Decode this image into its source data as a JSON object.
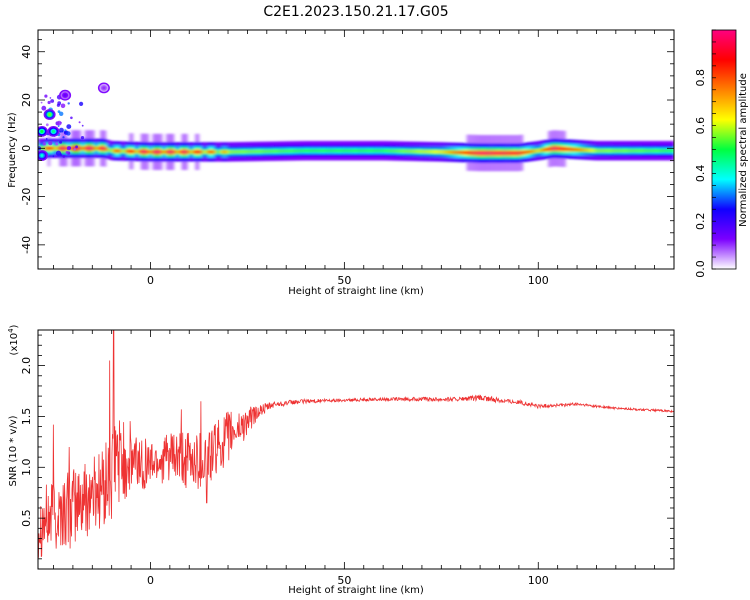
{
  "figure": {
    "title": "C2E1.2023.150.21.17.G05"
  },
  "chart_data": [
    {
      "type": "heatmap",
      "xlabel": "Height of straight line (km)",
      "ylabel": "Frequency (Hz)",
      "xlim": [
        -29,
        135
      ],
      "ylim": [
        -50,
        49
      ],
      "xticks": [
        0,
        50,
        100
      ],
      "xtick_labels": [
        "0",
        "50",
        "100"
      ],
      "yticks": [
        40,
        20,
        0,
        -20,
        -40
      ],
      "ytick_labels": [
        "40",
        "20",
        "0",
        "-20",
        "-40"
      ],
      "ridge": [
        {
          "x": -29,
          "f": 0.0,
          "amp": 0.55
        },
        {
          "x": -20,
          "f": 0.0,
          "amp": 0.8
        },
        {
          "x": -12,
          "f": 0.0,
          "amp": 0.7
        },
        {
          "x": -10,
          "f": -1.0,
          "amp": 0.55
        },
        {
          "x": 0,
          "f": -1.5,
          "amp": 0.75
        },
        {
          "x": 10,
          "f": -1.5,
          "amp": 0.7
        },
        {
          "x": 20,
          "f": -1.5,
          "amp": 0.5
        },
        {
          "x": 40,
          "f": -1.0,
          "amp": 0.45
        },
        {
          "x": 60,
          "f": -1.0,
          "amp": 0.45
        },
        {
          "x": 75,
          "f": -1.5,
          "amp": 0.55
        },
        {
          "x": 85,
          "f": -2.0,
          "amp": 0.85
        },
        {
          "x": 95,
          "f": -2.0,
          "amp": 0.8
        },
        {
          "x": 100,
          "f": -1.0,
          "amp": 0.55
        },
        {
          "x": 104,
          "f": 0.0,
          "amp": 0.85
        },
        {
          "x": 115,
          "f": -1.0,
          "amp": 0.5
        },
        {
          "x": 135,
          "f": -1.0,
          "amp": 0.45
        }
      ],
      "blobs": [
        {
          "x": -26,
          "f": 14,
          "amp": 0.55
        },
        {
          "x": -28,
          "f": 7,
          "amp": 0.5
        },
        {
          "x": -25,
          "f": 7,
          "amp": 0.45
        },
        {
          "x": -28,
          "f": -3,
          "amp": 0.4
        },
        {
          "x": -22,
          "f": 22,
          "amp": 0.15
        },
        {
          "x": -12,
          "f": 25,
          "amp": 0.1
        }
      ],
      "colorbar": {
        "label": "Normalized spectral amplitude",
        "range": [
          0,
          1
        ],
        "ticks": [
          0.0,
          0.2,
          0.4,
          0.6,
          0.8
        ],
        "tick_labels": [
          "0.0",
          "0.2",
          "0.4",
          "0.6",
          "0.8"
        ],
        "colors": [
          "#ffffff",
          "#7b00ff",
          "#1000ff",
          "#00ffff",
          "#00ff40",
          "#ffff00",
          "#ff8000",
          "#ff0000",
          "#ff0080"
        ]
      }
    },
    {
      "type": "line",
      "xlabel": "Height of straight line (km)",
      "ylabel": "SNR (10 * v/v)",
      "ylabel_scale": "(x10",
      "ylabel_exp": "4",
      "ylabel_close": ")",
      "xlim": [
        -29,
        135
      ],
      "ylim": [
        0,
        2.35
      ],
      "xticks": [
        0,
        50,
        100
      ],
      "xtick_labels": [
        "0",
        "50",
        "100"
      ],
      "yticks": [
        0.5,
        1.0,
        1.5,
        2.0
      ],
      "ytick_labels": [
        "0.5",
        "1.0",
        "1.5",
        "2.0"
      ],
      "color": "#ee3333",
      "envelope": {
        "x": [
          -29,
          -20,
          -15,
          -10,
          -9,
          -5,
          0,
          5,
          10,
          15,
          20,
          25,
          28,
          32,
          40,
          50,
          60,
          70,
          80,
          85,
          90,
          95,
          100,
          110,
          120,
          135
        ],
        "mean": [
          0.45,
          0.6,
          0.75,
          0.85,
          1.1,
          1.05,
          1.05,
          1.1,
          1.05,
          1.1,
          1.3,
          1.45,
          1.55,
          1.62,
          1.65,
          1.66,
          1.67,
          1.67,
          1.67,
          1.68,
          1.66,
          1.64,
          1.6,
          1.62,
          1.58,
          1.55
        ],
        "amp": [
          0.35,
          0.4,
          0.4,
          0.45,
          0.45,
          0.4,
          0.22,
          0.25,
          0.3,
          0.3,
          0.25,
          0.15,
          0.06,
          0.03,
          0.02,
          0.015,
          0.015,
          0.02,
          0.02,
          0.03,
          0.025,
          0.02,
          0.02,
          0.015,
          0.01,
          0.01
        ]
      },
      "peaks": [
        {
          "x": -9.5,
          "y": 2.35
        },
        {
          "x": -10.5,
          "y": 2.05
        },
        {
          "x": -25,
          "y": 1.42
        },
        {
          "x": -21,
          "y": 1.2
        },
        {
          "x": 13,
          "y": 1.65
        },
        {
          "x": 8,
          "y": 1.57
        },
        {
          "x": 14.5,
          "y": 0.65
        }
      ]
    }
  ]
}
